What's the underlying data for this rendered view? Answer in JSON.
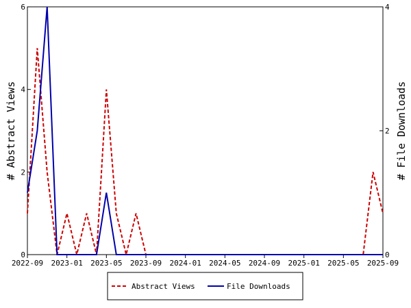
{
  "chart_data": {
    "type": "line",
    "x_ticks": [
      "2022-09",
      "2023-01",
      "2023-05",
      "2023-09",
      "2024-01",
      "2024-05",
      "2024-09",
      "2025-01",
      "2025-05",
      "2025-09"
    ],
    "x": [
      "2022-09",
      "2022-10",
      "2022-11",
      "2022-12",
      "2023-01",
      "2023-02",
      "2023-03",
      "2023-04",
      "2023-05",
      "2023-06",
      "2023-07",
      "2023-08",
      "2023-09",
      "2023-10",
      "2023-11",
      "2023-12",
      "2024-01",
      "2024-02",
      "2024-03",
      "2024-04",
      "2024-05",
      "2024-06",
      "2024-07",
      "2024-08",
      "2024-09",
      "2024-10",
      "2024-11",
      "2024-12",
      "2025-01",
      "2025-02",
      "2025-03",
      "2025-04",
      "2025-05",
      "2025-06",
      "2025-07",
      "2025-08",
      "2025-09"
    ],
    "series": [
      {
        "name": "Abstract Views",
        "axis": "left",
        "color": "#cc0000",
        "dash": "dashed",
        "values": [
          1,
          5,
          2,
          0,
          1,
          0,
          1,
          0,
          4,
          1,
          0,
          1,
          0,
          0,
          0,
          0,
          0,
          0,
          0,
          0,
          0,
          0,
          0,
          0,
          0,
          0,
          0,
          0,
          0,
          0,
          0,
          0,
          0,
          0,
          0,
          2,
          1
        ]
      },
      {
        "name": "File Downloads",
        "axis": "right",
        "color": "#0000aa",
        "dash": "solid",
        "values": [
          1,
          2,
          4,
          0,
          0,
          0,
          0,
          0,
          1,
          0,
          0,
          0,
          0,
          0,
          0,
          0,
          0,
          0,
          0,
          0,
          0,
          0,
          0,
          0,
          0,
          0,
          0,
          0,
          0,
          0,
          0,
          0,
          0,
          0,
          0,
          0,
          0
        ]
      }
    ],
    "ylabel_left": "# Abstract Views",
    "ylabel_right": "# File Downloads",
    "ylim_left": [
      0,
      6
    ],
    "ylim_right": [
      0,
      4
    ],
    "yticks_left": [
      0,
      2,
      4,
      6
    ],
    "yticks_right": [
      0,
      2,
      4
    ],
    "grid": false,
    "legend_position": "bottom-center"
  }
}
